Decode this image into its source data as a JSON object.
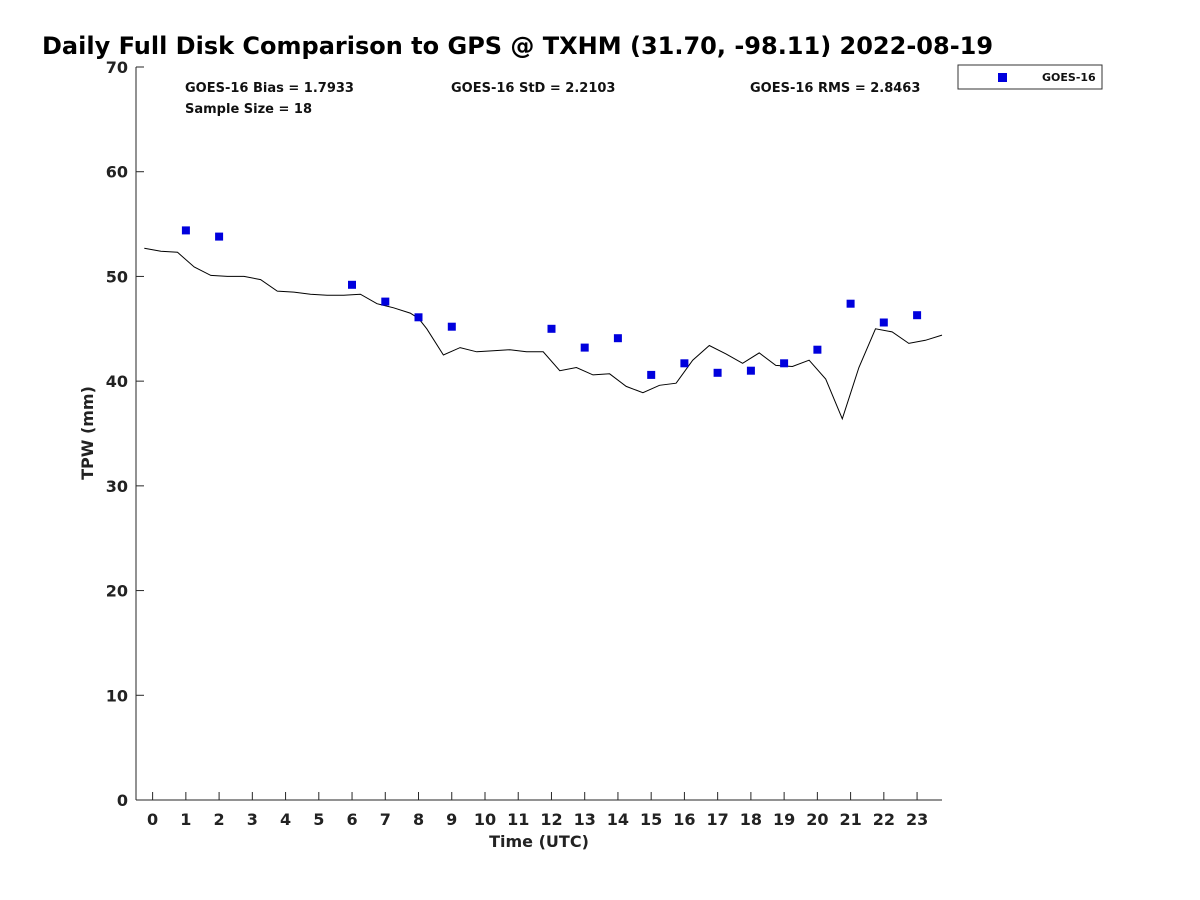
{
  "chart_data": {
    "type": "scatter",
    "title": "Daily Full Disk Comparison to GPS @ TXHM (31.70, -98.11) 2022-08-19",
    "xlabel": "Time (UTC)",
    "ylabel": "TPW (mm)",
    "xlim": [
      -0.5,
      23.75
    ],
    "ylim": [
      0,
      70
    ],
    "x_ticks": [
      "0",
      "1",
      "2",
      "3",
      "4",
      "5",
      "6",
      "7",
      "8",
      "9",
      "10",
      "11",
      "12",
      "13",
      "14",
      "15",
      "16",
      "17",
      "18",
      "19",
      "20",
      "21",
      "22",
      "23"
    ],
    "y_ticks": [
      "0",
      "10",
      "20",
      "30",
      "40",
      "50",
      "60",
      "70"
    ],
    "grid": false,
    "legend_position": "top-right-outside",
    "stats": {
      "bias": "GOES-16 Bias = 1.7933",
      "std": "GOES-16 StD = 2.2103",
      "rms": "GOES-16 RMS = 2.8463",
      "sample": "Sample Size = 18"
    },
    "series": [
      {
        "name": "GOES-16",
        "kind": "scatter",
        "color": "#0000dd",
        "marker": "square",
        "x": [
          1,
          2,
          6,
          7,
          8,
          9,
          12,
          13,
          14,
          15,
          16,
          17,
          18,
          19,
          20,
          21,
          22,
          23
        ],
        "y": [
          54.4,
          53.8,
          49.2,
          47.6,
          46.1,
          45.2,
          45.0,
          43.2,
          44.1,
          40.6,
          41.7,
          40.8,
          41.0,
          41.7,
          43.0,
          47.4,
          45.6,
          46.3
        ]
      },
      {
        "name": "GPS",
        "kind": "line",
        "color": "#000000",
        "x": [
          -0.25,
          0.25,
          0.75,
          1.25,
          1.75,
          2.25,
          2.75,
          3.25,
          3.75,
          4.25,
          4.75,
          5.25,
          5.75,
          6.25,
          6.75,
          7.25,
          7.75,
          8.0,
          8.25,
          8.75,
          9.25,
          9.75,
          10.25,
          10.75,
          11.25,
          11.75,
          12.25,
          12.75,
          13.25,
          13.75,
          14.25,
          14.75,
          15.25,
          15.75,
          16.25,
          16.75,
          17.25,
          17.75,
          18.25,
          18.75,
          19.25,
          19.75,
          20.25,
          20.75,
          21.25,
          21.75,
          22.25,
          22.75,
          23.25,
          23.75
        ],
        "y": [
          52.7,
          52.4,
          52.3,
          50.9,
          50.1,
          50.0,
          50.0,
          49.7,
          48.6,
          48.5,
          48.3,
          48.2,
          48.2,
          48.3,
          47.4,
          47.0,
          46.5,
          46.0,
          45.0,
          42.5,
          43.2,
          42.8,
          42.9,
          43.0,
          42.8,
          42.8,
          41.0,
          41.3,
          40.6,
          40.7,
          39.5,
          38.9,
          39.6,
          39.8,
          42.0,
          43.4,
          42.6,
          41.7,
          42.7,
          41.5,
          41.4,
          42.0,
          40.2,
          36.4,
          41.3,
          45.0,
          44.7,
          43.6,
          43.9,
          44.4
        ]
      }
    ]
  }
}
